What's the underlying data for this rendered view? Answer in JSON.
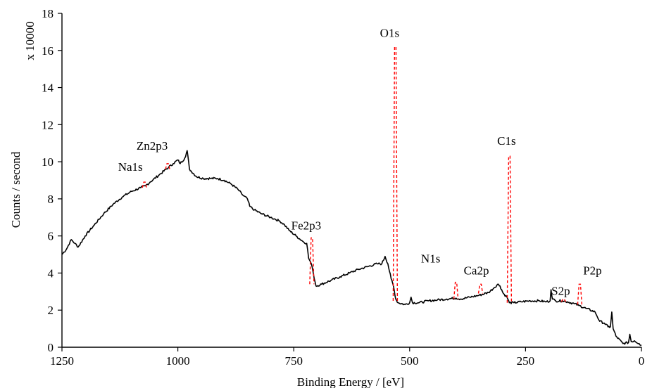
{
  "chart_data": {
    "type": "line",
    "title": "",
    "xlabel": "Binding Energy / [eV]",
    "ylabel": "Counts / second",
    "y_multiplier_label": "x 10000",
    "xlim": [
      1250,
      0
    ],
    "ylim": [
      0,
      18
    ],
    "x_reversed": true,
    "xticks": [
      1250,
      1000,
      750,
      500,
      250,
      0
    ],
    "yticks": [
      0,
      2,
      4,
      6,
      8,
      10,
      12,
      14,
      16,
      18
    ],
    "grid": false,
    "series": [
      {
        "color": "#000000",
        "points": [
          [
            1250,
            5.0
          ],
          [
            1240,
            5.3
          ],
          [
            1230,
            5.8
          ],
          [
            1222,
            5.6
          ],
          [
            1215,
            5.4
          ],
          [
            1200,
            6.0
          ],
          [
            1180,
            6.6
          ],
          [
            1160,
            7.2
          ],
          [
            1140,
            7.7
          ],
          [
            1120,
            8.1
          ],
          [
            1100,
            8.4
          ],
          [
            1080,
            8.6
          ],
          [
            1070,
            8.7
          ],
          [
            1060,
            8.9
          ],
          [
            1040,
            9.3
          ],
          [
            1020,
            9.7
          ],
          [
            1010,
            9.9
          ],
          [
            1000,
            10.1
          ],
          [
            995,
            9.9
          ],
          [
            985,
            10.2
          ],
          [
            980,
            10.6
          ],
          [
            975,
            9.6
          ],
          [
            960,
            9.2
          ],
          [
            945,
            9.1
          ],
          [
            930,
            9.1
          ],
          [
            915,
            9.1
          ],
          [
            900,
            9.0
          ],
          [
            885,
            8.8
          ],
          [
            870,
            8.5
          ],
          [
            860,
            8.2
          ],
          [
            850,
            8.0
          ],
          [
            845,
            7.6
          ],
          [
            835,
            7.4
          ],
          [
            820,
            7.2
          ],
          [
            800,
            7.0
          ],
          [
            790,
            6.9
          ],
          [
            780,
            6.8
          ],
          [
            770,
            6.6
          ],
          [
            760,
            6.3
          ],
          [
            745,
            6.0
          ],
          [
            730,
            5.7
          ],
          [
            722,
            5.6
          ],
          [
            718,
            4.8
          ],
          [
            712,
            4.5
          ],
          [
            708,
            4.0
          ],
          [
            702,
            3.3
          ],
          [
            690,
            3.4
          ],
          [
            670,
            3.6
          ],
          [
            650,
            3.8
          ],
          [
            630,
            4.0
          ],
          [
            610,
            4.2
          ],
          [
            590,
            4.35
          ],
          [
            570,
            4.5
          ],
          [
            560,
            4.5
          ],
          [
            553,
            4.9
          ],
          [
            547,
            4.5
          ],
          [
            540,
            3.7
          ],
          [
            535,
            3.3
          ],
          [
            530,
            2.6
          ],
          [
            525,
            2.4
          ],
          [
            510,
            2.3
          ],
          [
            500,
            2.4
          ],
          [
            497,
            2.7
          ],
          [
            494,
            2.4
          ],
          [
            480,
            2.4
          ],
          [
            460,
            2.5
          ],
          [
            440,
            2.55
          ],
          [
            420,
            2.6
          ],
          [
            400,
            2.65
          ],
          [
            390,
            2.6
          ],
          [
            370,
            2.7
          ],
          [
            350,
            2.8
          ],
          [
            330,
            2.95
          ],
          [
            318,
            3.2
          ],
          [
            310,
            3.4
          ],
          [
            305,
            3.3
          ],
          [
            298,
            2.9
          ],
          [
            290,
            2.7
          ],
          [
            285,
            2.4
          ],
          [
            275,
            2.4
          ],
          [
            260,
            2.45
          ],
          [
            240,
            2.5
          ],
          [
            220,
            2.5
          ],
          [
            205,
            2.45
          ],
          [
            197,
            2.5
          ],
          [
            195,
            3.1
          ],
          [
            192,
            2.6
          ],
          [
            185,
            2.5
          ],
          [
            170,
            2.5
          ],
          [
            160,
            2.45
          ],
          [
            145,
            2.35
          ],
          [
            135,
            2.25
          ],
          [
            120,
            2.1
          ],
          [
            100,
            1.9
          ],
          [
            90,
            1.4
          ],
          [
            80,
            1.3
          ],
          [
            72,
            1.1
          ],
          [
            67,
            1.1
          ],
          [
            64,
            1.9
          ],
          [
            61,
            1.0
          ],
          [
            55,
            0.6
          ],
          [
            40,
            0.2
          ],
          [
            28,
            0.25
          ],
          [
            25,
            0.7
          ],
          [
            22,
            0.3
          ],
          [
            15,
            0.35
          ],
          [
            5,
            0.2
          ],
          [
            0,
            0.1
          ]
        ]
      }
    ],
    "peaks": [
      {
        "name": "Na1s",
        "x": 1072,
        "top": 8.9,
        "base": 8.6
      },
      {
        "name": "Zn2p3",
        "x": 1022,
        "top": 9.9,
        "base": 9.6
      },
      {
        "name": "Fe2p3",
        "x": 711,
        "top": 5.9,
        "base": 3.4
      },
      {
        "name": "O1s",
        "x": 531,
        "top": 16.2,
        "base": 2.5
      },
      {
        "name": "N1s",
        "x": 400,
        "top": 3.5,
        "base": 2.6
      },
      {
        "name": "Ca2p",
        "x": 347,
        "top": 3.4,
        "base": 2.9
      },
      {
        "name": "C1s",
        "x": 285,
        "top": 10.3,
        "base": 2.4
      },
      {
        "name": "S2p",
        "x": 168,
        "top": 2.6,
        "base": 2.45
      },
      {
        "name": "P2p",
        "x": 133,
        "top": 3.4,
        "base": 2.3
      }
    ]
  }
}
